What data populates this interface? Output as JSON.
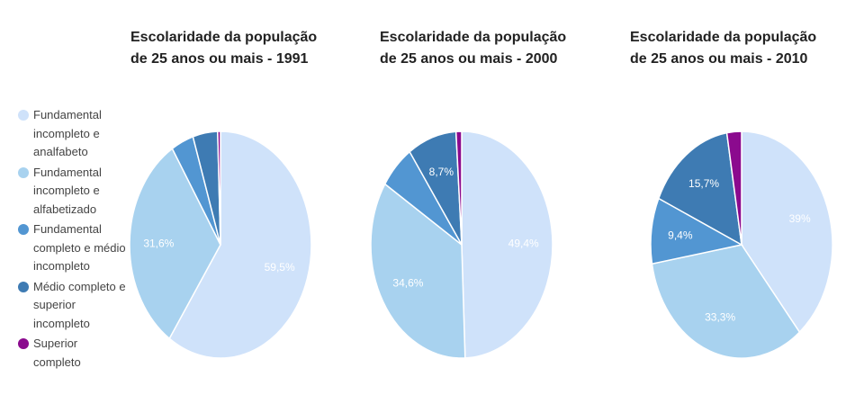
{
  "legend": [
    {
      "label": "Fundamental incompleto e analfabeto",
      "color": "#cfe2fa"
    },
    {
      "label": "Fundamental incompleto e alfabetizado",
      "color": "#a8d2ef"
    },
    {
      "label": "Fundamental completo e médio incompleto",
      "color": "#5296d2"
    },
    {
      "label": "Médio completo e superior incompleto",
      "color": "#3e7bb3"
    },
    {
      "label": "Superior completo",
      "color": "#8b0a8e"
    }
  ],
  "chart_data": [
    {
      "type": "pie",
      "title": "Escolaridade da população\nde 25 anos ou mais - 1991",
      "values": [
        59.5,
        31.6,
        4.0,
        4.4,
        0.5
      ],
      "labels": [
        "59,5%",
        "31,6%",
        "",
        "",
        ""
      ]
    },
    {
      "type": "pie",
      "title": "Escolaridade da população\nde 25 anos ou mais - 2000",
      "values": [
        49.4,
        34.6,
        6.3,
        8.7,
        1.0
      ],
      "labels": [
        "49,4%",
        "34,6%",
        "",
        "8,7%",
        ""
      ]
    },
    {
      "type": "pie",
      "title": "Escolaridade da população\nde 25 anos ou mais - 2010",
      "values": [
        39,
        33.3,
        9.4,
        15.7,
        2.6
      ],
      "labels": [
        "39%",
        "33,3%",
        "9,4%",
        "15,7%",
        ""
      ]
    }
  ]
}
